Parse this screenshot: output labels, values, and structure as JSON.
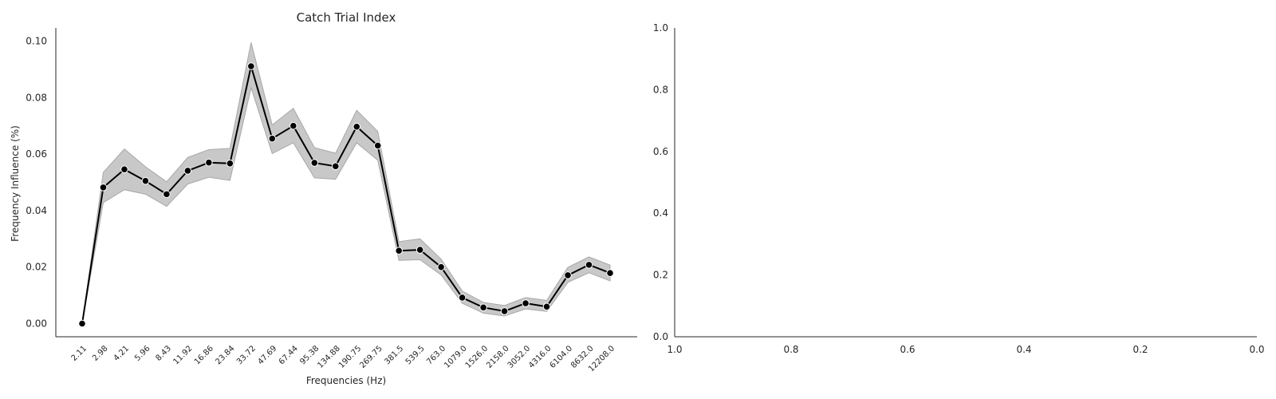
{
  "chart_data": [
    {
      "type": "line",
      "title": "Catch Trial Index",
      "xlabel": "Frequencies (Hz)",
      "ylabel": "Frequency Influence (%)",
      "categories": [
        "2.11",
        "2.98",
        "4.21",
        "5.96",
        "8.43",
        "11.92",
        "16.86",
        "23.84",
        "33.72",
        "47.69",
        "67.44",
        "95.38",
        "134.88",
        "190.75",
        "269.75",
        "381.5",
        "539.5",
        "763.0",
        "1079.0",
        "1526.0",
        "2158.0",
        "3052.0",
        "4316.0",
        "6104.0",
        "8632.0",
        "12208.0"
      ],
      "yticks": [
        "0.00",
        "0.02",
        "0.04",
        "0.06",
        "0.08",
        "0.10"
      ],
      "ylim": [
        -0.005,
        0.1045
      ],
      "series": [
        {
          "values": [
            0.0,
            0.0482,
            0.0546,
            0.0505,
            0.0458,
            0.0541,
            0.057,
            0.0567,
            0.0911,
            0.0655,
            0.07,
            0.0569,
            0.0557,
            0.0697,
            0.063,
            0.0258,
            0.0261,
            0.02,
            0.0092,
            0.0057,
            0.0044,
            0.0072,
            0.006,
            0.0171,
            0.0208,
            0.0179
          ],
          "ci_lower": [
            0.0,
            0.0428,
            0.0474,
            0.0458,
            0.0415,
            0.0494,
            0.0518,
            0.0507,
            0.0835,
            0.0602,
            0.064,
            0.0516,
            0.0511,
            0.064,
            0.0578,
            0.0224,
            0.0226,
            0.0172,
            0.0072,
            0.0037,
            0.0027,
            0.0052,
            0.0043,
            0.0146,
            0.018,
            0.0151
          ],
          "ci_upper": [
            0.0,
            0.0535,
            0.0618,
            0.0555,
            0.0502,
            0.0588,
            0.0616,
            0.062,
            0.0995,
            0.0703,
            0.0762,
            0.0623,
            0.0603,
            0.0755,
            0.068,
            0.029,
            0.03,
            0.0228,
            0.0115,
            0.0075,
            0.0064,
            0.0092,
            0.0082,
            0.0199,
            0.0236,
            0.0207
          ]
        }
      ],
      "colors": {
        "line": "#000000",
        "band": "#c8c8c8",
        "band_edge": "#a8a8a8",
        "marker": "#000000",
        "marker_edge": "#ffffff"
      },
      "grid": false
    },
    {
      "type": "line",
      "title": "",
      "xticks": [
        "1.0",
        "0.8",
        "0.6",
        "0.4",
        "0.2",
        "0.0"
      ],
      "yticks": [
        "0.0",
        "0.2",
        "0.4",
        "0.6",
        "0.8",
        "1.0"
      ],
      "xlim": [
        1.0,
        0.0
      ],
      "ylim": [
        0.0,
        1.0
      ],
      "series": [],
      "grid": false
    }
  ]
}
